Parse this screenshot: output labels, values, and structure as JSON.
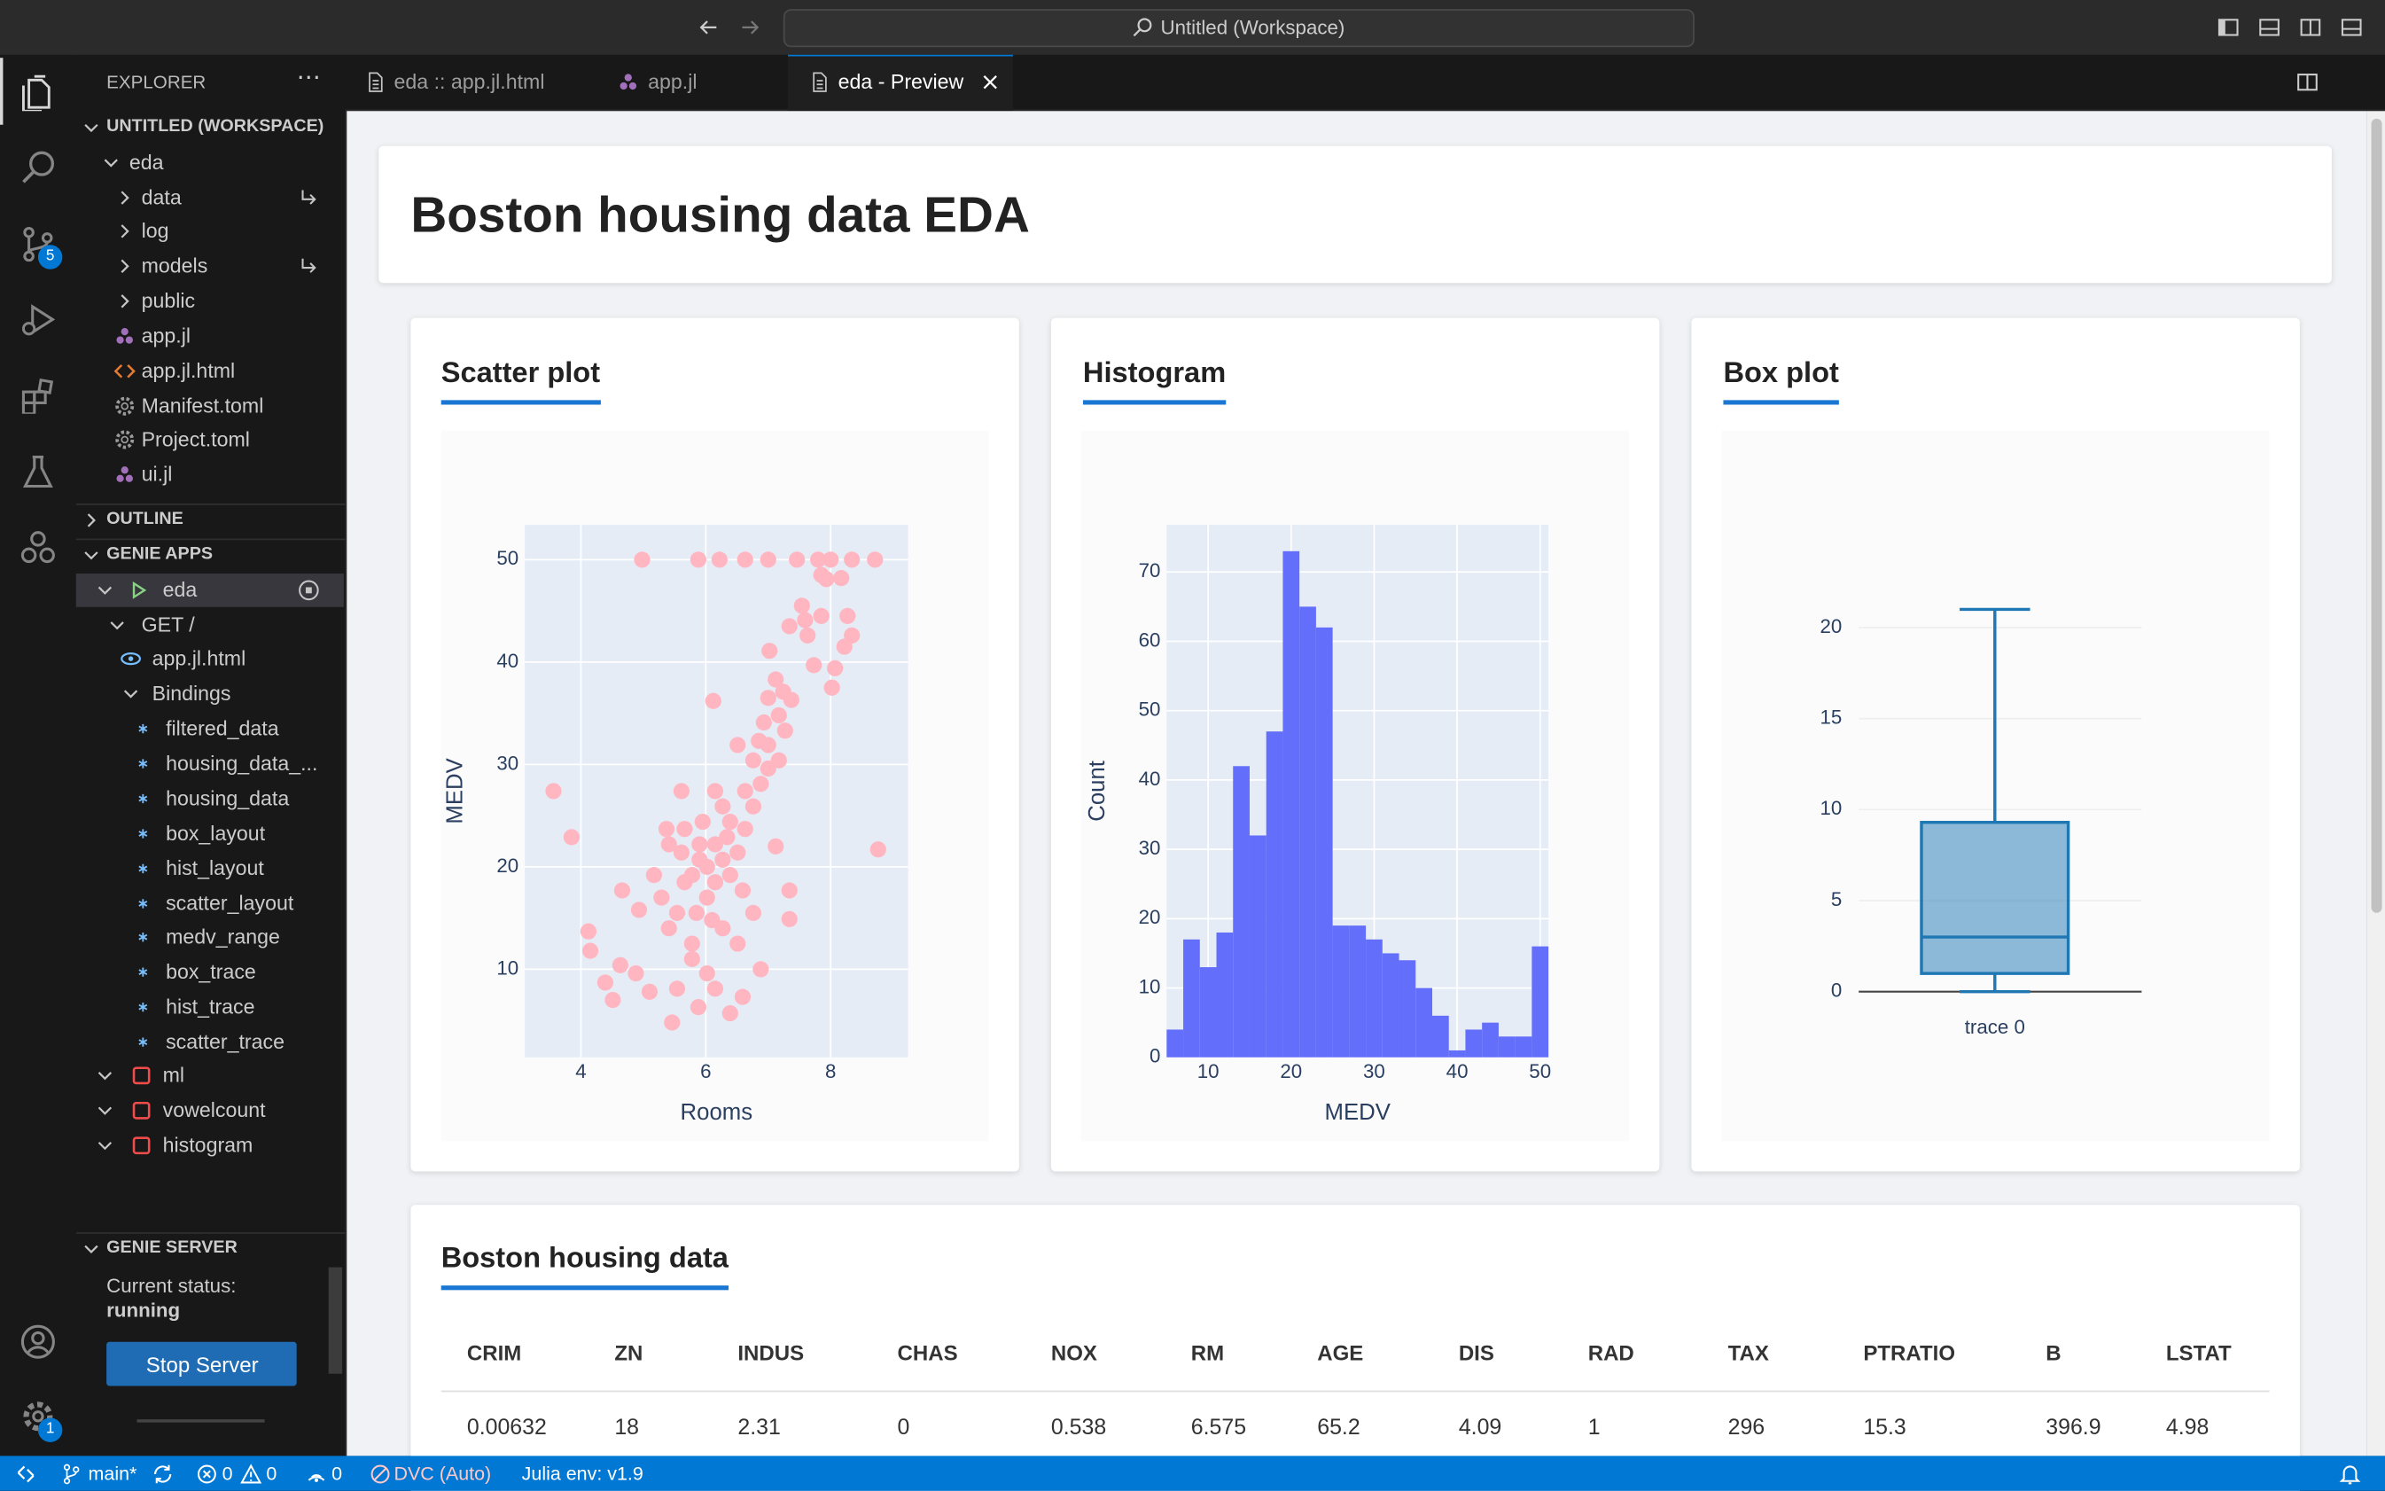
{
  "titlebar": {
    "search": "Untitled (Workspace)"
  },
  "activity_bar": {
    "scm_badge": 5,
    "settings_badge": 1
  },
  "explorer": {
    "title": "EXPLORER",
    "workspace": "UNTITLED (WORKSPACE)",
    "items": [
      "eda",
      "data",
      "log",
      "models",
      "public",
      "app.jl",
      "app.jl.html",
      "Manifest.toml",
      "Project.toml",
      "ui.jl"
    ]
  },
  "outline": "OUTLINE",
  "genie_apps": {
    "title": "GENIE APPS",
    "items": [
      "eda",
      "GET /",
      "app.jl.html",
      "Bindings",
      "filtered_data",
      "housing_data_...",
      "housing_data",
      "box_layout",
      "hist_layout",
      "scatter_layout",
      "medv_range",
      "box_trace",
      "hist_trace",
      "scatter_trace",
      "ml",
      "vowelcount",
      "histogram"
    ]
  },
  "genie_server": {
    "title": "GENIE SERVER",
    "status_label": "Current status:",
    "status": "running",
    "button": "Stop Server"
  },
  "tabs": [
    "eda :: app.jl.html",
    "app.jl",
    "eda - Preview"
  ],
  "page_title": "Boston housing data EDA",
  "chart_data": [
    {
      "type": "scatter",
      "title": "Scatter plot",
      "xlabel": "Rooms",
      "ylabel": "MEDV",
      "color": "#ffb6c1",
      "plot_bgcolor": "#e5ecf6",
      "grid": true,
      "x": [
        4.98,
        5.88,
        6.22,
        6.63,
        7.0,
        7.46,
        7.8,
        8.0,
        8.34,
        8.71,
        3.56,
        3.85,
        8.76,
        4.12,
        4.15,
        4.39,
        4.51,
        4.63,
        4.66,
        4.93,
        4.88,
        5.1,
        5.46,
        5.88,
        6.12,
        6.15,
        6.39,
        6.59,
        6.88,
        7.12,
        7.34,
        7.34,
        7.63,
        8.02,
        8.07,
        7.73,
        8.22,
        8.34,
        8.27,
        7.85,
        7.59,
        7.54,
        7.34,
        7.93,
        7.85,
        8.17,
        7.02,
        7.12,
        7.0,
        6.93,
        6.85,
        6.76,
        7.37,
        7.27,
        7.17,
        6.63,
        6.39,
        6.15,
        5.9,
        5.66,
        5.54,
        5.78,
        5.41,
        5.29,
        5.17,
        6.02,
        6.27,
        6.51,
        6.76,
        5.66,
        5.41,
        5.61,
        5.37,
        6.15,
        6.27,
        6.51,
        6.02,
        5.78,
        5.54,
        5.9,
        5.78,
        6.02,
        6.15,
        6.27,
        6.39,
        6.51,
        6.63,
        6.76,
        6.88,
        7.0,
        5.85,
        6.1,
        5.61,
        5.95,
        6.34,
        6.59,
        7.0,
        7.17,
        7.24
      ],
      "values": [
        50,
        50,
        50,
        50,
        50,
        50,
        50,
        50,
        50,
        50,
        27.4,
        22.9,
        21.7,
        13.7,
        11.8,
        8.7,
        7.0,
        10.4,
        17.7,
        15.8,
        9.6,
        7.8,
        4.8,
        6.3,
        36.2,
        8.1,
        5.7,
        7.3,
        10.0,
        22.0,
        17.7,
        14.9,
        42.6,
        37.5,
        39.4,
        39.7,
        41.5,
        42.6,
        44.5,
        44.5,
        44.1,
        45.5,
        43.5,
        48.1,
        48.5,
        48.2,
        41.1,
        38.3,
        36.5,
        34.1,
        32.3,
        30.4,
        36.3,
        33.3,
        30.4,
        27.4,
        24.4,
        22.2,
        20.7,
        18.5,
        15.5,
        12.5,
        14.0,
        17.0,
        19.2,
        17.0,
        14.0,
        12.5,
        15.5,
        23.7,
        22.2,
        27.4,
        23.7,
        27.4,
        25.9,
        31.9,
        9.6,
        11.0,
        8.1,
        22.2,
        19.2,
        20.0,
        18.5,
        20.7,
        19.2,
        21.4,
        23.7,
        25.9,
        28.1,
        29.6,
        15.5,
        14.8,
        21.4,
        24.4,
        22.9,
        17.7,
        31.9,
        34.8,
        37.1
      ],
      "xlim": [
        3.1,
        9.24
      ],
      "xticks": [
        4,
        6,
        8
      ],
      "ylim": [
        1.4,
        53.4
      ],
      "yticks": [
        10,
        20,
        30,
        40,
        50
      ]
    },
    {
      "type": "histogram",
      "title": "Histogram",
      "xlabel": "MEDV",
      "ylabel": "Count",
      "color": "#636efa",
      "plot_bgcolor": "#e5ecf6",
      "grid": true,
      "bins": [
        5,
        7,
        9,
        11,
        13,
        15,
        17,
        19,
        21,
        23,
        25,
        27,
        29,
        31,
        33,
        35,
        37,
        39,
        41,
        43,
        45,
        47,
        49,
        51
      ],
      "values": [
        4,
        17,
        13,
        18,
        42,
        32,
        47,
        73,
        65,
        62,
        19,
        19,
        17,
        15,
        14,
        10,
        6,
        1,
        4,
        5,
        3,
        3,
        16
      ],
      "xlim": [
        5,
        51
      ],
      "xticks": [
        10,
        20,
        30,
        40,
        50
      ],
      "ylim": [
        0,
        76.8
      ],
      "yticks": [
        0,
        10,
        20,
        30,
        40,
        50,
        60,
        70
      ]
    },
    {
      "type": "box",
      "title": "Box plot",
      "color": "#1f77b4",
      "grid": true,
      "zeroline": true,
      "categories": [
        "trace 0"
      ],
      "min": [
        0
      ],
      "q1": [
        1
      ],
      "median": [
        3
      ],
      "q3": [
        9.3
      ],
      "max": [
        21
      ],
      "ylim": [
        -1.1,
        22.3
      ],
      "yticks": [
        0,
        5,
        10,
        15,
        20
      ]
    }
  ],
  "table": {
    "title": "Boston housing data",
    "columns": [
      "CRIM",
      "ZN",
      "INDUS",
      "CHAS",
      "NOX",
      "RM",
      "AGE",
      "DIS",
      "RAD",
      "TAX",
      "PTRATIO",
      "B",
      "LSTAT"
    ],
    "rows": [
      [
        0.00632,
        18,
        2.31,
        0,
        0.538,
        6.575,
        65.2,
        4.09,
        1,
        296,
        15.3,
        396.9,
        4.98
      ]
    ]
  },
  "status_bar": {
    "branch": "main*",
    "errors": 0,
    "warnings": 0,
    "ports": 0,
    "dvc": "DVC (Auto)",
    "julia": "Julia env: v1.9"
  }
}
